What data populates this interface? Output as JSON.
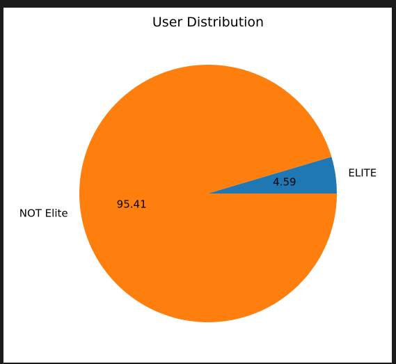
{
  "background_color": "#1b1b1b",
  "chart_data": {
    "type": "pie",
    "title": "User Distribution",
    "categories": [
      "ELITE",
      "NOT Elite"
    ],
    "values": [
      4.59,
      95.41
    ],
    "value_labels": [
      "4.59",
      "95.41"
    ],
    "colors": [
      "#1f77b4",
      "#ff7f0e"
    ],
    "start_angle_deg": 0,
    "direction": "counterclockwise"
  }
}
